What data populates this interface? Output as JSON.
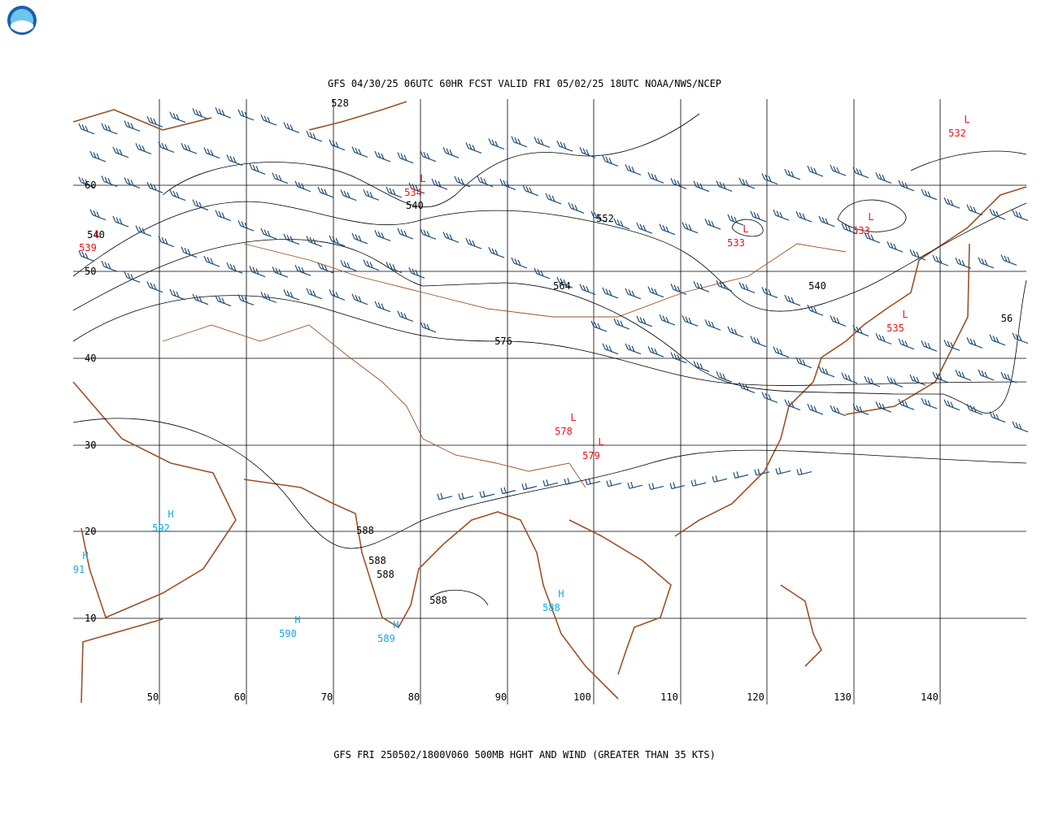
{
  "header": {
    "title": "GFS 04/30/25 06UTC 60HR FCST VALID FRI 05/02/25 18UTC NOAA/NWS/NCEP"
  },
  "footer": {
    "caption": "GFS FRI 250502/1800V060 500MB HGHT AND WIND (GREATER THAN 35 KTS)"
  },
  "axes": {
    "lat_labels": [
      "60",
      "50",
      "40",
      "30",
      "20",
      "10"
    ],
    "lon_labels": [
      "50",
      "60",
      "70",
      "80",
      "90",
      "100",
      "110",
      "120",
      "130",
      "140"
    ]
  },
  "contour_labels": [
    "528",
    "540",
    "540",
    "552",
    "564",
    "576",
    "540",
    "56",
    "588",
    "588",
    "588",
    "588"
  ],
  "centers": [
    {
      "symbol": "L",
      "value": "534"
    },
    {
      "symbol": "L",
      "value": "539"
    },
    {
      "symbol": "L",
      "value": "533"
    },
    {
      "symbol": "L",
      "value": "533"
    },
    {
      "symbol": "L",
      "value": "532"
    },
    {
      "symbol": "L",
      "value": "535"
    },
    {
      "symbol": "L",
      "value": "578"
    },
    {
      "symbol": "L",
      "value": "579"
    },
    {
      "symbol": "H",
      "value": "592"
    },
    {
      "symbol": "H",
      "value": "91"
    },
    {
      "symbol": "H",
      "value": "590"
    },
    {
      "symbol": "H",
      "value": "589"
    },
    {
      "symbol": "H",
      "value": "588"
    }
  ]
}
